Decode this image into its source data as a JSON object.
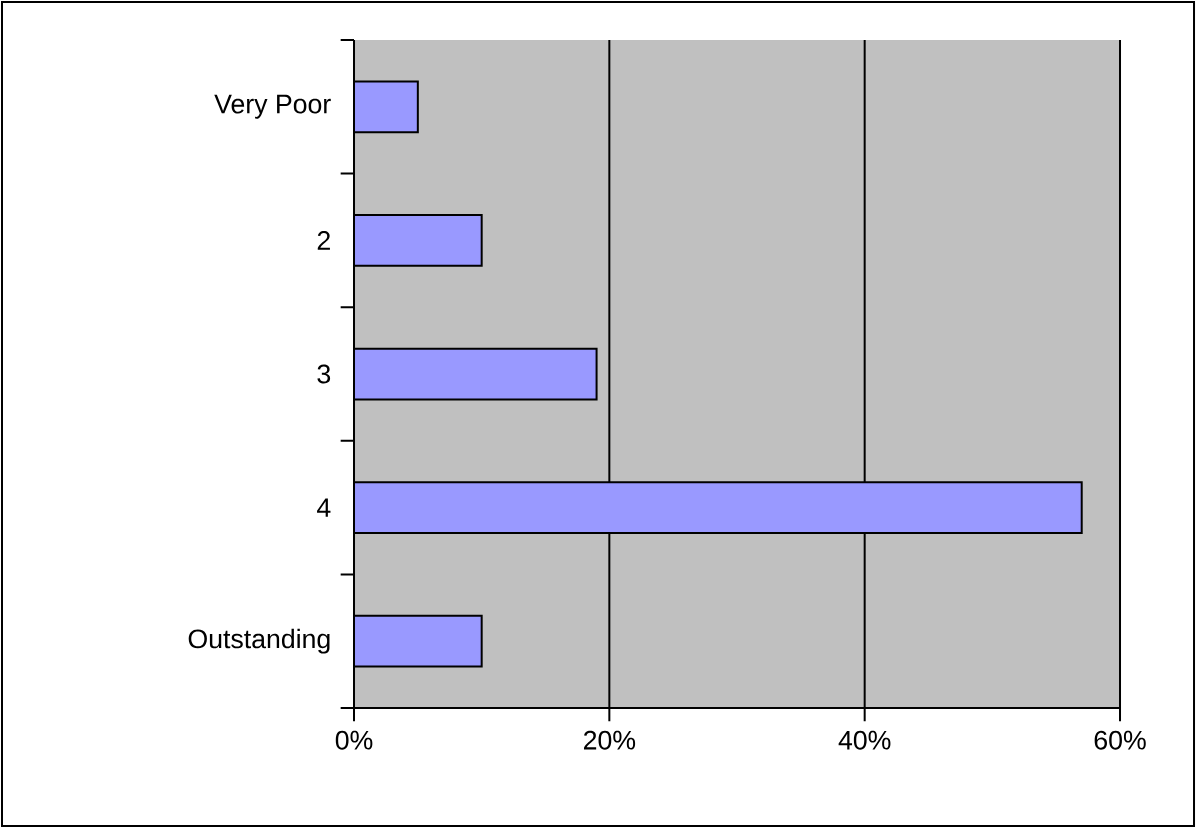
{
  "chart_data": {
    "type": "bar",
    "orientation": "horizontal",
    "categories": [
      "Very Poor",
      "2",
      "3",
      "4",
      "Outstanding"
    ],
    "values": [
      5,
      10,
      19,
      57,
      10
    ],
    "color": "#9999ff",
    "xlim": [
      0,
      60
    ],
    "xticks": [
      {
        "value": 0,
        "label": "0%"
      },
      {
        "value": 20,
        "label": "20%"
      },
      {
        "value": 40,
        "label": "40%"
      },
      {
        "value": 60,
        "label": "60%"
      }
    ],
    "grid": "x"
  }
}
